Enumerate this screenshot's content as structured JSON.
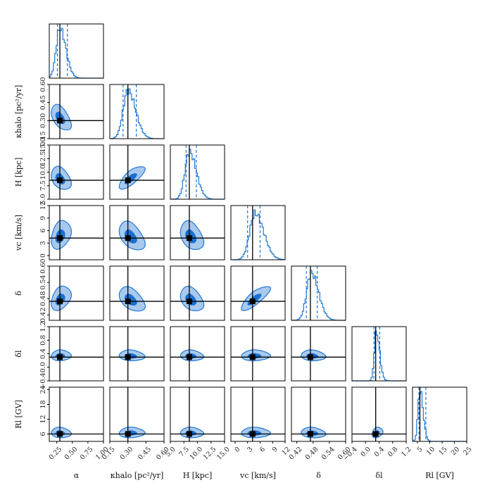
{
  "chart_data": {
    "type": "corner",
    "grid": false,
    "parameters": [
      {
        "key": "alpha",
        "label": "α",
        "range": [
          0.13,
          1.0
        ],
        "ticks": [
          0.25,
          0.5,
          0.75,
          1.0
        ],
        "tick_labels": [
          "0.25",
          "0.50",
          "0.75",
          "1.00"
        ],
        "truth": 0.3,
        "median": 0.3,
        "q16": 0.26,
        "q84": 0.42,
        "peak": 0.3,
        "width": 0.06
      },
      {
        "key": "kappa",
        "label": "κhalo [pc²/yr]",
        "range": [
          0.15,
          0.6
        ],
        "ticks": [
          0.15,
          0.3,
          0.45,
          0.6
        ],
        "tick_labels": [
          "0.15",
          "0.30",
          "0.45",
          "0.60"
        ],
        "truth": 0.3,
        "median": 0.32,
        "q16": 0.26,
        "q84": 0.37,
        "peak": 0.3,
        "width": 0.04
      },
      {
        "key": "H",
        "label": "H [kpc]",
        "range": [
          5.0,
          15.0
        ],
        "ticks": [
          5.0,
          7.5,
          10.0,
          12.5,
          15.0
        ],
        "tick_labels": [
          "5.0",
          "7.5",
          "10.0",
          "12.5",
          "15.0"
        ],
        "truth": 8.5,
        "median": 8.7,
        "q16": 7.9,
        "q84": 9.8,
        "peak": 8.5,
        "width": 0.8
      },
      {
        "key": "vc",
        "label": "vc [km/s]",
        "range": [
          -1.0,
          12.0
        ],
        "ticks": [
          0,
          3,
          6,
          9,
          12
        ],
        "tick_labels": [
          "0",
          "3",
          "6",
          "9",
          "12"
        ],
        "truth": 4.2,
        "median": 4.5,
        "q16": 3.0,
        "q84": 6.0,
        "peak": 4.8,
        "width": 1.3
      },
      {
        "key": "delta",
        "label": "δ",
        "range": [
          0.4,
          0.6
        ],
        "ticks": [
          0.42,
          0.48,
          0.54,
          0.6
        ],
        "tick_labels": [
          "0.42",
          "0.48",
          "0.54",
          "0.60"
        ],
        "truth": 0.47,
        "median": 0.475,
        "q16": 0.455,
        "q84": 0.495,
        "peak": 0.473,
        "width": 0.017
      },
      {
        "key": "delta_l",
        "label": "δl",
        "range": [
          -0.4,
          1.2
        ],
        "ticks": [
          -0.4,
          0.0,
          0.4,
          0.8,
          1.2
        ],
        "tick_labels": [
          "−0.4",
          "0.0",
          "0.4",
          "0.8",
          "1.2"
        ],
        "truth": 0.3,
        "median": 0.33,
        "q16": 0.25,
        "q84": 0.42,
        "peak": 0.32,
        "width": 0.06
      },
      {
        "key": "R_l",
        "label": "Rl [GV]",
        "range": [
          3.0,
          25.0
        ],
        "ticks": [
          5,
          10,
          15,
          20,
          25
        ],
        "tick_labels": [
          "5",
          "10",
          "15",
          "20",
          "25"
        ],
        "truth": 6.0,
        "median": 6.3,
        "q16": 5.6,
        "q84": 8.4,
        "peak": 6.0,
        "width": 0.8
      }
    ],
    "y_axis_labels": {
      "kappa": "κhalo [pc²/yr]",
      "H": "H [kpc]",
      "vc": "vc [km/s]",
      "delta": "δ",
      "delta_l": "δl",
      "R_l": "Rl [GV]"
    },
    "y_ticks": {
      "kappa": {
        "ticks": [
          0.15,
          0.3,
          0.45,
          0.6
        ],
        "labels": [
          "0.15",
          "0.30",
          "0.45",
          "0.60"
        ]
      },
      "H": {
        "ticks": [
          5.0,
          7.5,
          10.0,
          12.5,
          15.0
        ],
        "labels": [
          "5.0",
          "7.5",
          "10.0",
          "12.5",
          "15.0"
        ]
      },
      "vc": {
        "ticks": [
          0,
          3,
          6,
          9,
          12
        ],
        "labels": [
          "0",
          "3",
          "6",
          "9",
          "12"
        ]
      },
      "delta": {
        "ticks": [
          0.42,
          0.48,
          0.54,
          0.6
        ],
        "labels": [
          "0.42",
          "0.48",
          "0.54",
          "0.60"
        ]
      },
      "delta_l": {
        "ticks": [
          -0.4,
          0.0,
          0.4,
          0.8,
          1.2
        ],
        "labels": [
          "−0.4",
          "0.0",
          "0.4",
          "0.8",
          "1.2"
        ]
      },
      "R_l": {
        "ticks": [
          6,
          12,
          18,
          24
        ],
        "labels": [
          "6",
          "12",
          "18",
          "24"
        ]
      }
    },
    "colors": {
      "hist": "#1f77d4",
      "contour_68": "#1a6fd0",
      "contour_95": "#a8c9ee",
      "truth": "#000000"
    }
  }
}
